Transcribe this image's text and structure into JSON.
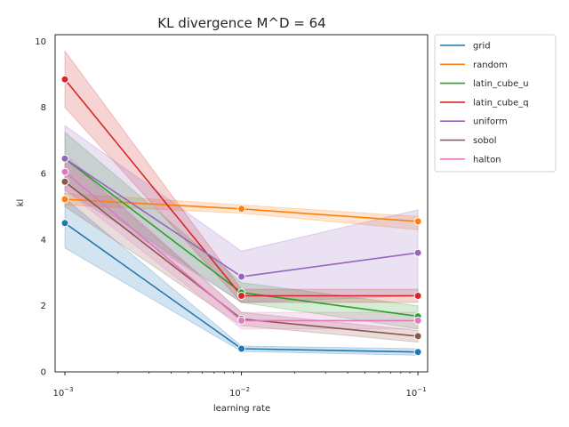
{
  "chart_data": {
    "type": "line",
    "title": "KL divergence M^D = 64",
    "xlabel": "learning rate",
    "ylabel": "kl",
    "xscale": "log",
    "x": [
      0.001,
      0.01,
      0.1
    ],
    "x_tick_labels": [
      {
        "base": "10",
        "exp": "−3"
      },
      {
        "base": "10",
        "exp": "−2"
      },
      {
        "base": "10",
        "exp": "−1"
      }
    ],
    "ylim": [
      0,
      10.2
    ],
    "y_ticks": [
      0,
      2,
      4,
      6,
      8,
      10
    ],
    "grid": false,
    "legend_position": "outside top-right",
    "series": [
      {
        "name": "grid",
        "color": "#1f77b4",
        "values": [
          4.5,
          0.7,
          0.6
        ],
        "lower": [
          3.75,
          0.62,
          0.5
        ],
        "upper": [
          5.25,
          0.78,
          0.7
        ]
      },
      {
        "name": "random",
        "color": "#ff7f0e",
        "values": [
          5.22,
          4.93,
          4.55
        ],
        "lower": [
          5.05,
          4.8,
          4.3
        ],
        "upper": [
          5.4,
          5.05,
          4.7
        ]
      },
      {
        "name": "latin_cube_u",
        "color": "#2ca02c",
        "values": [
          6.45,
          2.4,
          1.68
        ],
        "lower": [
          5.7,
          2.1,
          1.3
        ],
        "upper": [
          7.25,
          2.7,
          2.0
        ]
      },
      {
        "name": "latin_cube_q",
        "color": "#d62728",
        "values": [
          8.85,
          2.3,
          2.3
        ],
        "lower": [
          8.0,
          2.1,
          2.1
        ],
        "upper": [
          9.7,
          2.5,
          2.5
        ]
      },
      {
        "name": "uniform",
        "color": "#9467bd",
        "values": [
          6.45,
          2.88,
          3.6
        ],
        "lower": [
          5.5,
          2.1,
          2.3
        ],
        "upper": [
          7.45,
          3.65,
          4.9
        ]
      },
      {
        "name": "sobol",
        "color": "#8c564b",
        "values": [
          5.75,
          1.6,
          1.08
        ],
        "lower": [
          5.0,
          1.4,
          0.9
        ],
        "upper": [
          6.5,
          1.8,
          1.25
        ]
      },
      {
        "name": "halton",
        "color": "#e377c2",
        "values": [
          6.05,
          1.55,
          1.55
        ],
        "lower": [
          5.5,
          1.3,
          1.3
        ],
        "upper": [
          6.6,
          1.8,
          1.8
        ]
      }
    ]
  }
}
